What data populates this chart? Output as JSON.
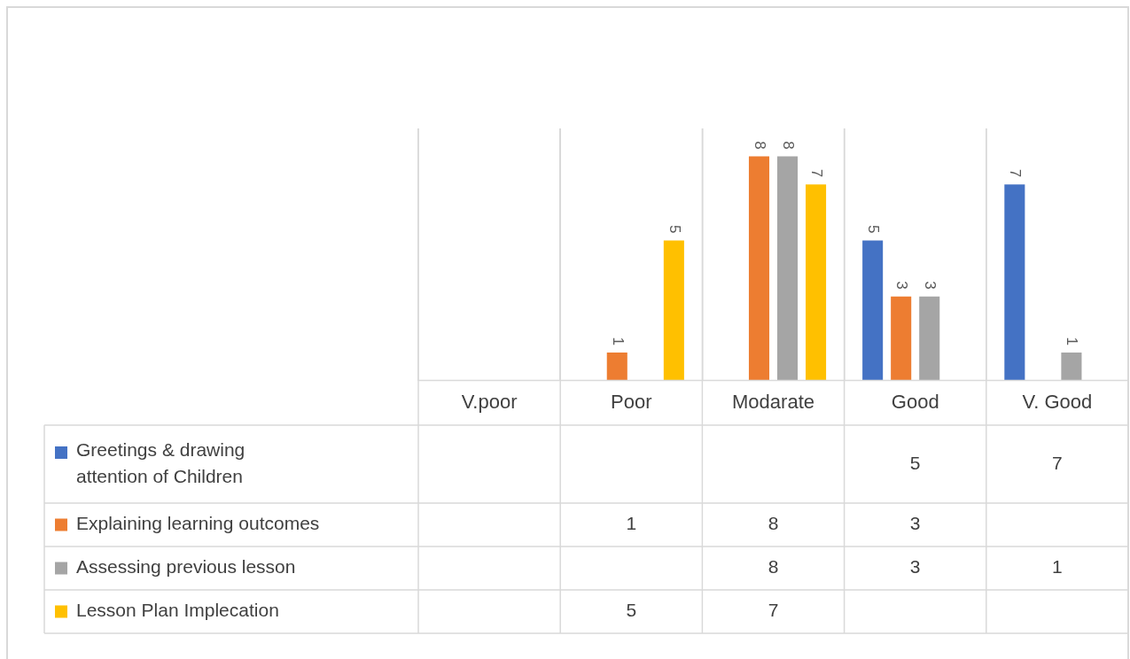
{
  "chart_data": {
    "type": "bar",
    "categories": [
      "V.poor",
      "Poor",
      "Modarate",
      "Good",
      "V. Good"
    ],
    "series": [
      {
        "name": "Greetings & drawing attention of Children",
        "color": "#4472c4",
        "values": [
          null,
          null,
          null,
          5,
          7
        ],
        "value_labels": [
          null,
          null,
          null,
          "5",
          "7"
        ]
      },
      {
        "name": "Explaining learning outcomes",
        "color": "#ed7d31",
        "values": [
          null,
          1,
          8,
          3,
          null
        ],
        "value_labels": [
          null,
          "1",
          "8",
          "3",
          null
        ]
      },
      {
        "name": "Assessing previous lesson",
        "color": "#a5a5a5",
        "values": [
          null,
          null,
          8,
          3,
          1
        ],
        "value_labels": [
          null,
          null,
          "8",
          "3",
          "1"
        ]
      },
      {
        "name": "Lesson Plan Implecation",
        "color": "#ffc000",
        "values": [
          null,
          5,
          7,
          null,
          null
        ],
        "value_labels": [
          null,
          "5",
          "7",
          null,
          null
        ]
      }
    ],
    "ylim": [
      0,
      9
    ],
    "grid": "x",
    "legend": "bottom",
    "tick_labels": "x"
  }
}
